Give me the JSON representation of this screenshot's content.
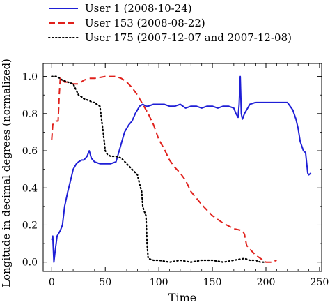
{
  "chart_data": {
    "type": "line",
    "title": "",
    "xlabel": "Time",
    "ylabel": "Longitude in decimal degrees (normalized)",
    "xlim": [
      -8,
      252
    ],
    "ylim": [
      -0.05,
      1.07
    ],
    "x_ticks": [
      0,
      50,
      100,
      150,
      200,
      250
    ],
    "x_tick_labels": [
      "0",
      "50",
      "100",
      "150",
      "200",
      "250"
    ],
    "y_ticks": [
      0.0,
      0.2,
      0.4,
      0.6,
      0.8,
      1.0
    ],
    "y_tick_labels": [
      "0.0",
      "0.2",
      "0.4",
      "0.6",
      "0.8",
      "1.0"
    ],
    "grid": false,
    "legend_position": "top (above plot)",
    "series": [
      {
        "name": "User 1 (2008-10-24)",
        "color": "#1f1fd6",
        "dash": "solid",
        "x": [
          0,
          1,
          2,
          3,
          5,
          8,
          10,
          12,
          15,
          18,
          20,
          23,
          25,
          28,
          30,
          33,
          35,
          37,
          40,
          45,
          50,
          55,
          60,
          62,
          64,
          66,
          68,
          70,
          72,
          75,
          78,
          80,
          82,
          85,
          88,
          90,
          95,
          100,
          105,
          110,
          115,
          120,
          125,
          130,
          135,
          140,
          145,
          150,
          155,
          160,
          165,
          170,
          172,
          174,
          175,
          176,
          177,
          178,
          180,
          185,
          190,
          195,
          200,
          205,
          210,
          215,
          220,
          225,
          228,
          230,
          232,
          235,
          237,
          239,
          240,
          242
        ],
        "y": [
          0.12,
          0.14,
          0.0,
          0.05,
          0.14,
          0.17,
          0.2,
          0.3,
          0.38,
          0.45,
          0.5,
          0.53,
          0.54,
          0.55,
          0.55,
          0.57,
          0.6,
          0.56,
          0.54,
          0.53,
          0.53,
          0.53,
          0.54,
          0.58,
          0.62,
          0.66,
          0.7,
          0.72,
          0.74,
          0.76,
          0.8,
          0.82,
          0.84,
          0.85,
          0.84,
          0.84,
          0.85,
          0.85,
          0.85,
          0.84,
          0.84,
          0.85,
          0.83,
          0.84,
          0.84,
          0.83,
          0.84,
          0.84,
          0.83,
          0.84,
          0.84,
          0.83,
          0.8,
          0.78,
          0.85,
          1.0,
          0.8,
          0.77,
          0.8,
          0.85,
          0.86,
          0.86,
          0.86,
          0.86,
          0.86,
          0.86,
          0.86,
          0.82,
          0.77,
          0.72,
          0.65,
          0.6,
          0.59,
          0.48,
          0.47,
          0.48
        ]
      },
      {
        "name": "User 153 (2008-08-22)",
        "color": "#e0201b",
        "dash": "dashed",
        "x": [
          0,
          1,
          2,
          4,
          6,
          7,
          8,
          9,
          10,
          12,
          15,
          20,
          25,
          30,
          35,
          40,
          45,
          50,
          55,
          60,
          65,
          70,
          75,
          80,
          85,
          90,
          95,
          100,
          105,
          110,
          115,
          120,
          125,
          130,
          140,
          150,
          160,
          170,
          178,
          180,
          182,
          185,
          190,
          195,
          200,
          205,
          210
        ],
        "y": [
          0.66,
          0.74,
          0.75,
          0.76,
          0.76,
          0.9,
          0.99,
          0.98,
          0.98,
          0.97,
          0.97,
          0.96,
          0.96,
          0.98,
          0.99,
          0.99,
          0.995,
          1.0,
          1.0,
          1.0,
          0.99,
          0.97,
          0.94,
          0.9,
          0.85,
          0.8,
          0.74,
          0.66,
          0.61,
          0.55,
          0.51,
          0.48,
          0.44,
          0.38,
          0.31,
          0.25,
          0.21,
          0.18,
          0.17,
          0.15,
          0.09,
          0.07,
          0.04,
          0.02,
          0.0,
          0.0,
          0.01
        ]
      },
      {
        "name": "User 175 (2007-12-07 and 2007-12-08)",
        "color": "#000000",
        "dash": "dotted",
        "x": [
          0,
          5,
          10,
          15,
          20,
          25,
          28,
          30,
          35,
          38,
          40,
          42,
          45,
          48,
          50,
          52,
          55,
          60,
          65,
          70,
          75,
          80,
          82,
          84,
          85,
          86,
          88,
          89,
          90,
          95,
          100,
          110,
          120,
          130,
          140,
          150,
          160,
          170,
          180,
          185,
          190,
          195,
          200
        ],
        "y": [
          1.0,
          1.0,
          0.98,
          0.97,
          0.96,
          0.9,
          0.89,
          0.88,
          0.87,
          0.86,
          0.86,
          0.85,
          0.84,
          0.7,
          0.6,
          0.58,
          0.57,
          0.57,
          0.56,
          0.53,
          0.5,
          0.47,
          0.42,
          0.38,
          0.3,
          0.28,
          0.25,
          0.1,
          0.02,
          0.01,
          0.01,
          0.0,
          0.01,
          0.0,
          0.01,
          0.01,
          0.0,
          0.01,
          0.02,
          0.01,
          0.01,
          0.0,
          0.0
        ]
      }
    ]
  }
}
